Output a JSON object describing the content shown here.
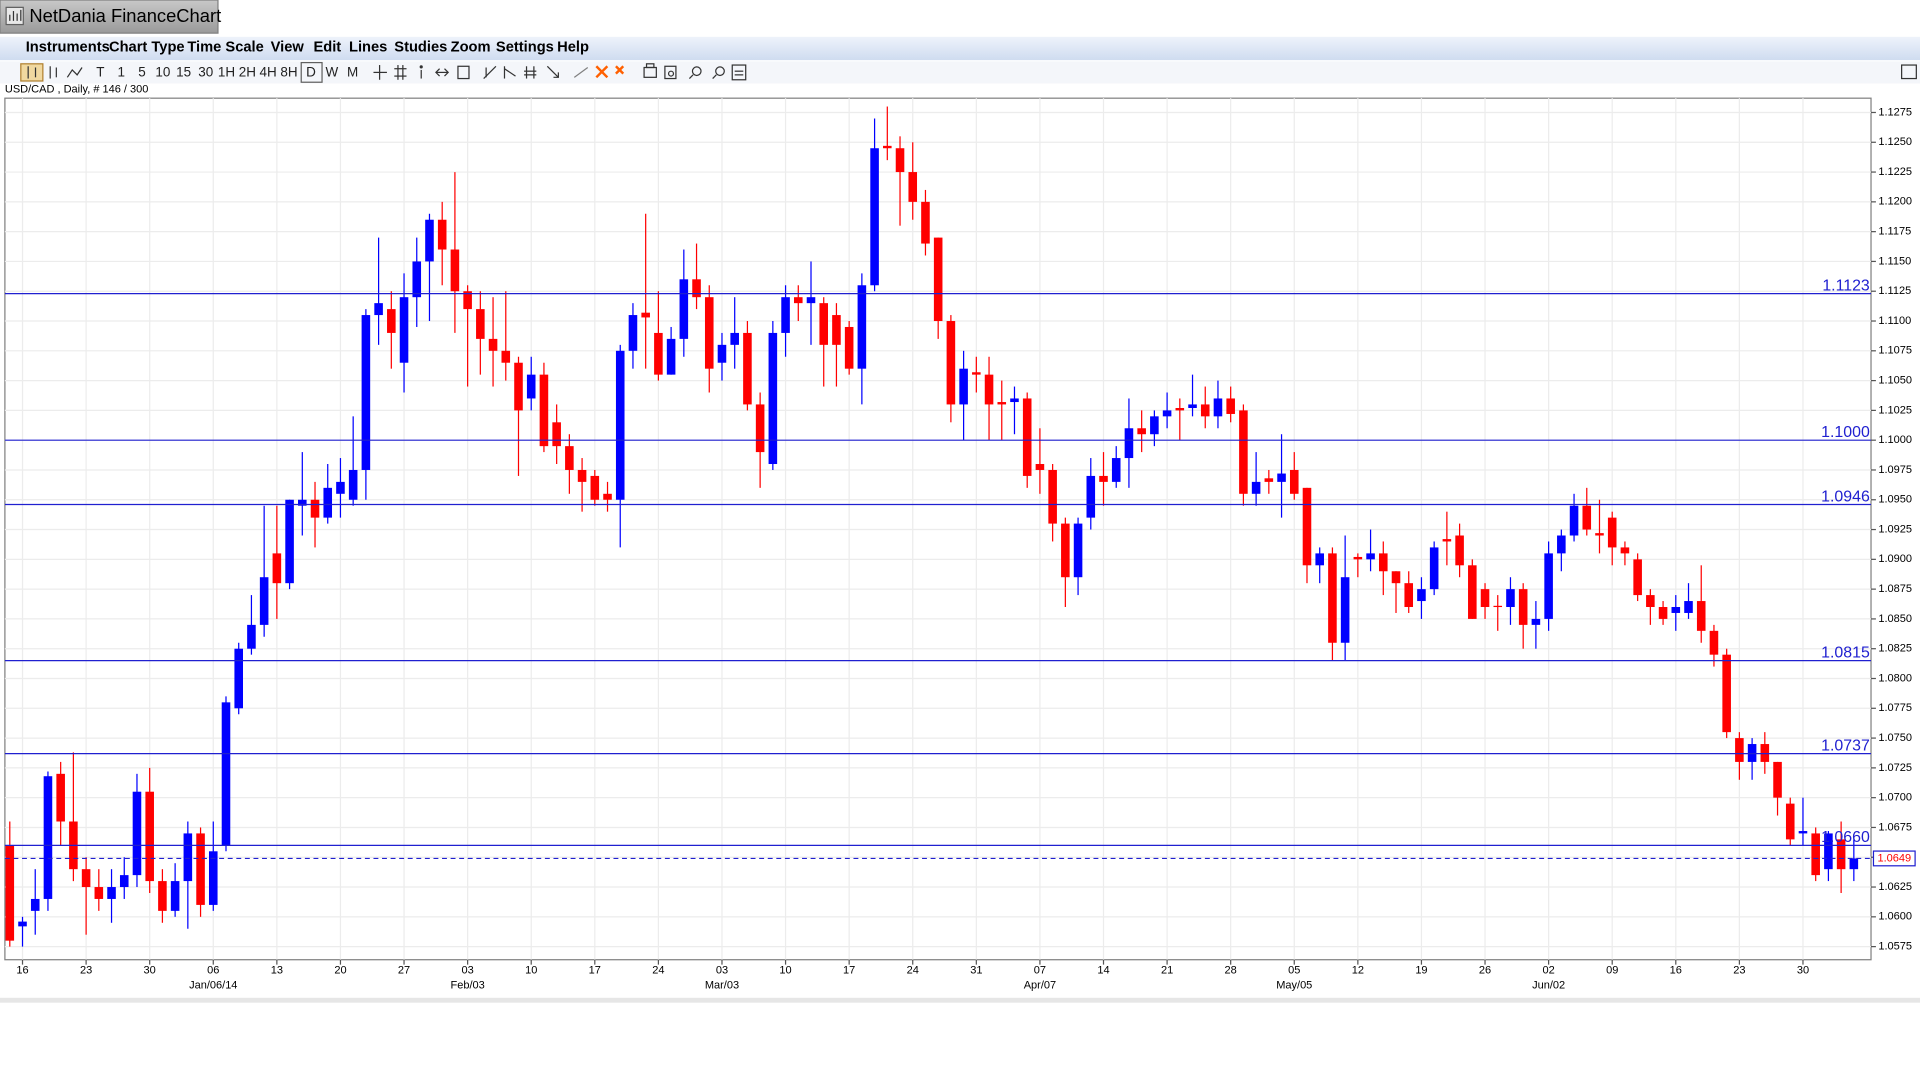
{
  "app_title": "NetDania FinanceChart",
  "menu": [
    "Instruments",
    "Chart Type",
    "Time Scale",
    "View",
    "Edit",
    "Lines",
    "Studies",
    "Zoom",
    "Settings",
    "Help"
  ],
  "toolbar": [
    "T",
    "1",
    "5",
    "10",
    "15",
    "30",
    "1H",
    "2H",
    "4H",
    "8H",
    "D",
    "W",
    "M"
  ],
  "chart_data": {
    "type": "candlestick",
    "title": "USD/CAD , Daily, # 146 / 300",
    "colors": {
      "up": "#0000ff",
      "down": "#ff0000",
      "line": "#2020d0"
    },
    "grid": true,
    "ylim": [
      1.0564,
      1.1287
    ],
    "yticks": [
      1.0575,
      {
        "value": 1.06,
        "label": "1.0600"
      },
      1.0625,
      {
        "value": 1.065,
        "label": "1.0650"
      },
      1.0675,
      {
        "value": 1.07,
        "label": "1.0700"
      },
      1.0725,
      {
        "value": 1.075,
        "label": "1.0750"
      },
      1.0775,
      {
        "value": 1.08,
        "label": "1.0800"
      },
      1.0825,
      {
        "value": 1.085,
        "label": "1.0850"
      },
      1.0875,
      {
        "value": 1.09,
        "label": "1.0900"
      },
      1.0925,
      {
        "value": 1.095,
        "label": "1.0950"
      },
      1.0975,
      {
        "value": 1.1,
        "label": "1.1000"
      },
      1.1025,
      {
        "value": 1.105,
        "label": "1.1050"
      },
      1.1075,
      {
        "value": 1.11,
        "label": "1.1100"
      },
      1.1125,
      {
        "value": 1.115,
        "label": "1.1150"
      },
      1.1175,
      {
        "value": 1.12,
        "label": "1.1200"
      },
      1.1225,
      {
        "value": 1.125,
        "label": "1.1250"
      },
      1.1275
    ],
    "xticks": [
      {
        "value": 1,
        "label": "16"
      },
      {
        "value": 6,
        "label": "23"
      },
      {
        "value": 11,
        "label": "30"
      },
      {
        "value": 16,
        "label": "06"
      },
      {
        "value": 21,
        "label": "13"
      },
      {
        "value": 26,
        "label": "20"
      },
      {
        "value": 31,
        "label": "27"
      },
      {
        "value": 36,
        "label": "03"
      },
      {
        "value": 41,
        "label": "10"
      },
      {
        "value": 46,
        "label": "17"
      },
      {
        "value": 51,
        "label": "24"
      },
      {
        "value": 56,
        "label": "03"
      },
      {
        "value": 61,
        "label": "10"
      },
      {
        "value": 66,
        "label": "17"
      },
      {
        "value": 71,
        "label": "24"
      },
      {
        "value": 76,
        "label": "31"
      },
      {
        "value": 81,
        "label": "07"
      },
      {
        "value": 86,
        "label": "14"
      },
      {
        "value": 91,
        "label": "21"
      },
      {
        "value": 96,
        "label": "28"
      },
      {
        "value": 101,
        "label": "05"
      },
      {
        "value": 106,
        "label": "12"
      },
      {
        "value": 111,
        "label": "19"
      },
      {
        "value": 116,
        "label": "26"
      },
      {
        "value": 121,
        "label": "02"
      },
      {
        "value": 126,
        "label": "09"
      },
      {
        "value": 131,
        "label": "16"
      },
      {
        "value": 136,
        "label": "23"
      },
      {
        "value": 141,
        "label": "30"
      }
    ],
    "xticks_secondary": [
      {
        "value": 16,
        "label": "Jan/06/14"
      },
      {
        "value": 36,
        "label": "Feb/03"
      },
      {
        "value": 56,
        "label": "Mar/03"
      },
      {
        "value": 81,
        "label": "Apr/07"
      },
      {
        "value": 101,
        "label": "May/05"
      },
      {
        "value": 121,
        "label": "Jun/02"
      }
    ],
    "hlines": [
      1.1123,
      {
        "value": 1.1,
        "label": "1.1000"
      },
      1.0946,
      1.0815,
      1.0737,
      {
        "value": 1.066,
        "label": "1.0660"
      }
    ],
    "last_price": 1.0649,
    "ohlc": [
      [
        1.066,
        1.068,
        1.0575,
        1.058
      ],
      [
        1.0592,
        1.06,
        1.0575,
        1.0596
      ],
      [
        1.0605,
        1.064,
        1.0585,
        1.0615
      ],
      [
        1.0615,
        1.0722,
        1.0605,
        1.0718
      ],
      [
        1.072,
        1.073,
        1.066,
        1.068
      ],
      [
        1.068,
        1.0738,
        1.063,
        1.064
      ],
      [
        1.064,
        1.065,
        1.0585,
        1.0625
      ],
      [
        1.0625,
        1.064,
        1.0605,
        1.0615
      ],
      [
        1.0615,
        1.064,
        1.0595,
        1.0625
      ],
      [
        1.0625,
        1.065,
        1.0615,
        1.0635
      ],
      [
        1.0635,
        1.072,
        1.0625,
        1.0705
      ],
      [
        1.0705,
        1.0725,
        1.062,
        1.063
      ],
      [
        1.063,
        1.064,
        1.0595,
        1.0605
      ],
      [
        1.0605,
        1.0645,
        1.06,
        1.063
      ],
      [
        1.063,
        1.068,
        1.059,
        1.067
      ],
      [
        1.067,
        1.0675,
        1.06,
        1.061
      ],
      [
        1.061,
        1.068,
        1.0605,
        1.0655
      ],
      [
        1.066,
        1.0785,
        1.0655,
        1.078
      ],
      [
        1.0775,
        1.083,
        1.077,
        1.0825
      ],
      [
        1.0825,
        1.087,
        1.082,
        1.0845
      ],
      [
        1.0845,
        1.0945,
        1.0835,
        1.0885
      ],
      [
        1.0905,
        1.0945,
        1.085,
        1.088
      ],
      [
        1.088,
        1.095,
        1.0875,
        1.095
      ],
      [
        1.0945,
        1.099,
        1.092,
        1.095
      ],
      [
        1.095,
        1.0965,
        1.091,
        1.0935
      ],
      [
        1.0935,
        1.098,
        1.093,
        1.096
      ],
      [
        1.0955,
        1.0985,
        1.0935,
        1.0965
      ],
      [
        1.095,
        1.102,
        1.0945,
        1.0975
      ],
      [
        1.0975,
        1.111,
        1.095,
        1.1105
      ],
      [
        1.1105,
        1.117,
        1.108,
        1.1115
      ],
      [
        1.111,
        1.1125,
        1.106,
        1.109
      ],
      [
        1.1065,
        1.114,
        1.104,
        1.112
      ],
      [
        1.112,
        1.117,
        1.1095,
        1.115
      ],
      [
        1.115,
        1.119,
        1.11,
        1.1185
      ],
      [
        1.1185,
        1.12,
        1.113,
        1.116
      ],
      [
        1.116,
        1.1225,
        1.109,
        1.1125
      ],
      [
        1.1125,
        1.113,
        1.1045,
        1.111
      ],
      [
        1.111,
        1.1125,
        1.1055,
        1.1085
      ],
      [
        1.1085,
        1.112,
        1.1045,
        1.1075
      ],
      [
        1.1075,
        1.1125,
        1.105,
        1.1065
      ],
      [
        1.1065,
        1.107,
        1.097,
        1.1025
      ],
      [
        1.1035,
        1.107,
        1.1025,
        1.1055
      ],
      [
        1.1055,
        1.1065,
        1.099,
        1.0995
      ],
      [
        1.1015,
        1.103,
        1.098,
        1.0995
      ],
      [
        1.0995,
        1.1005,
        1.0955,
        1.0975
      ],
      [
        1.0975,
        1.0985,
        1.094,
        1.0965
      ],
      [
        1.097,
        1.0975,
        1.0945,
        1.095
      ],
      [
        1.0955,
        1.0965,
        1.094,
        1.095
      ],
      [
        1.095,
        1.108,
        1.091,
        1.1075
      ],
      [
        1.1075,
        1.1115,
        1.106,
        1.1105
      ],
      [
        1.1107,
        1.119,
        1.106,
        1.1103
      ],
      [
        1.109,
        1.1125,
        1.105,
        1.1055
      ],
      [
        1.1055,
        1.1095,
        1.1055,
        1.1085
      ],
      [
        1.1085,
        1.116,
        1.107,
        1.1135
      ],
      [
        1.1135,
        1.1165,
        1.111,
        1.112
      ],
      [
        1.112,
        1.113,
        1.104,
        1.106
      ],
      [
        1.1065,
        1.109,
        1.105,
        1.108
      ],
      [
        1.108,
        1.112,
        1.106,
        1.109
      ],
      [
        1.109,
        1.11,
        1.1025,
        1.103
      ],
      [
        1.103,
        1.104,
        1.096,
        1.099
      ],
      [
        1.098,
        1.11,
        1.0975,
        1.109
      ],
      [
        1.109,
        1.113,
        1.107,
        1.112
      ],
      [
        1.112,
        1.113,
        1.11,
        1.1115
      ],
      [
        1.1115,
        1.115,
        1.108,
        1.112
      ],
      [
        1.1115,
        1.112,
        1.1045,
        1.108
      ],
      [
        1.1105,
        1.1115,
        1.1045,
        1.108
      ],
      [
        1.1095,
        1.11,
        1.1055,
        1.106
      ],
      [
        1.106,
        1.114,
        1.103,
        1.113
      ],
      [
        1.113,
        1.127,
        1.1125,
        1.1245
      ],
      [
        1.1247,
        1.128,
        1.1235,
        1.1245
      ],
      [
        1.1245,
        1.1255,
        1.118,
        1.1225
      ],
      [
        1.1225,
        1.125,
        1.1185,
        1.12
      ],
      [
        1.12,
        1.121,
        1.1155,
        1.1165
      ],
      [
        1.117,
        1.117,
        1.1085,
        1.11
      ],
      [
        1.11,
        1.1105,
        1.1015,
        1.103
      ],
      [
        1.103,
        1.1075,
        1.1,
        1.106
      ],
      [
        1.1057,
        1.107,
        1.104,
        1.1055
      ],
      [
        1.1055,
        1.107,
        1.1,
        1.103
      ],
      [
        1.1032,
        1.105,
        1.1,
        1.103
      ],
      [
        1.1032,
        1.1045,
        1.1005,
        1.1035
      ],
      [
        1.1035,
        1.104,
        1.096,
        1.097
      ],
      [
        1.098,
        1.101,
        1.0955,
        1.0975
      ],
      [
        1.0975,
        1.098,
        1.0915,
        1.093
      ],
      [
        1.093,
        1.0935,
        1.086,
        1.0885
      ],
      [
        1.0885,
        1.0935,
        1.087,
        1.093
      ],
      [
        1.0935,
        1.0985,
        1.0925,
        1.097
      ],
      [
        1.097,
        1.099,
        1.0945,
        1.0965
      ],
      [
        1.0965,
        1.0995,
        1.096,
        1.0985
      ],
      [
        1.0985,
        1.1035,
        1.096,
        1.101
      ],
      [
        1.101,
        1.1025,
        1.099,
        1.1005
      ],
      [
        1.1005,
        1.1025,
        1.0995,
        1.102
      ],
      [
        1.102,
        1.104,
        1.101,
        1.1025
      ],
      [
        1.1027,
        1.1035,
        1.1,
        1.1025
      ],
      [
        1.1027,
        1.1055,
        1.102,
        1.103
      ],
      [
        1.103,
        1.1045,
        1.101,
        1.102
      ],
      [
        1.102,
        1.105,
        1.101,
        1.1035
      ],
      [
        1.1035,
        1.1045,
        1.1015,
        1.1022
      ],
      [
        1.1025,
        1.103,
        1.0945,
        1.0955
      ],
      [
        1.0955,
        1.099,
        1.0945,
        1.0965
      ],
      [
        1.0968,
        1.0975,
        1.0955,
        1.0965
      ],
      [
        1.0965,
        1.1005,
        1.0935,
        1.0972
      ],
      [
        1.0975,
        1.099,
        1.095,
        1.0955
      ],
      [
        1.096,
        1.096,
        1.088,
        1.0895
      ],
      [
        1.0895,
        1.091,
        1.088,
        1.0905
      ],
      [
        1.0905,
        1.091,
        1.0815,
        1.083
      ],
      [
        1.083,
        1.092,
        1.0815,
        1.0885
      ],
      [
        1.0902,
        1.0905,
        1.0885,
        1.09
      ],
      [
        1.09,
        1.0925,
        1.089,
        1.0905
      ],
      [
        1.0905,
        1.0915,
        1.087,
        1.089
      ],
      [
        1.089,
        1.089,
        1.0855,
        1.088
      ],
      [
        1.088,
        1.089,
        1.0855,
        1.086
      ],
      [
        1.0865,
        1.0885,
        1.085,
        1.0875
      ],
      [
        1.0875,
        1.0915,
        1.087,
        1.091
      ],
      [
        1.0917,
        1.094,
        1.0895,
        1.0915
      ],
      [
        1.092,
        1.093,
        1.0885,
        1.0895
      ],
      [
        1.0895,
        1.09,
        1.085,
        1.085
      ],
      [
        1.0875,
        1.088,
        1.085,
        1.086
      ],
      [
        1.0861,
        1.087,
        1.084,
        1.086
      ],
      [
        1.086,
        1.0885,
        1.0845,
        1.0875
      ],
      [
        1.0875,
        1.088,
        1.0825,
        1.0845
      ],
      [
        1.0845,
        1.0865,
        1.0825,
        1.085
      ],
      [
        1.085,
        1.0915,
        1.084,
        1.0905
      ],
      [
        1.0905,
        1.0925,
        1.089,
        1.092
      ],
      [
        1.092,
        1.0955,
        1.0915,
        1.0945
      ],
      [
        1.0945,
        1.096,
        1.092,
        1.0925
      ],
      [
        1.0922,
        1.095,
        1.0905,
        1.092
      ],
      [
        1.0935,
        1.094,
        1.0895,
        1.091
      ],
      [
        1.091,
        1.0915,
        1.0895,
        1.0905
      ],
      [
        1.09,
        1.0905,
        1.0865,
        1.087
      ],
      [
        1.087,
        1.0875,
        1.0845,
        1.086
      ],
      [
        1.086,
        1.0865,
        1.0845,
        1.085
      ],
      [
        1.0855,
        1.087,
        1.084,
        1.086
      ],
      [
        1.0855,
        1.088,
        1.085,
        1.0865
      ],
      [
        1.0865,
        1.0895,
        1.083,
        1.084
      ],
      [
        1.084,
        1.0845,
        1.081,
        1.082
      ],
      [
        1.082,
        1.0825,
        1.075,
        1.0755
      ],
      [
        1.075,
        1.0755,
        1.0715,
        1.073
      ],
      [
        1.073,
        1.075,
        1.0715,
        1.0745
      ],
      [
        1.0745,
        1.0755,
        1.072,
        1.073
      ],
      [
        1.073,
        1.073,
        1.0685,
        1.07
      ],
      [
        1.0695,
        1.07,
        1.066,
        1.0665
      ],
      [
        1.067,
        1.07,
        1.066,
        1.0672
      ],
      [
        1.067,
        1.0675,
        1.063,
        1.0635
      ],
      [
        1.064,
        1.0672,
        1.063,
        1.067
      ],
      [
        1.0665,
        1.068,
        1.062,
        1.064
      ],
      [
        1.064,
        1.0665,
        1.063,
        1.0649
      ]
    ]
  }
}
